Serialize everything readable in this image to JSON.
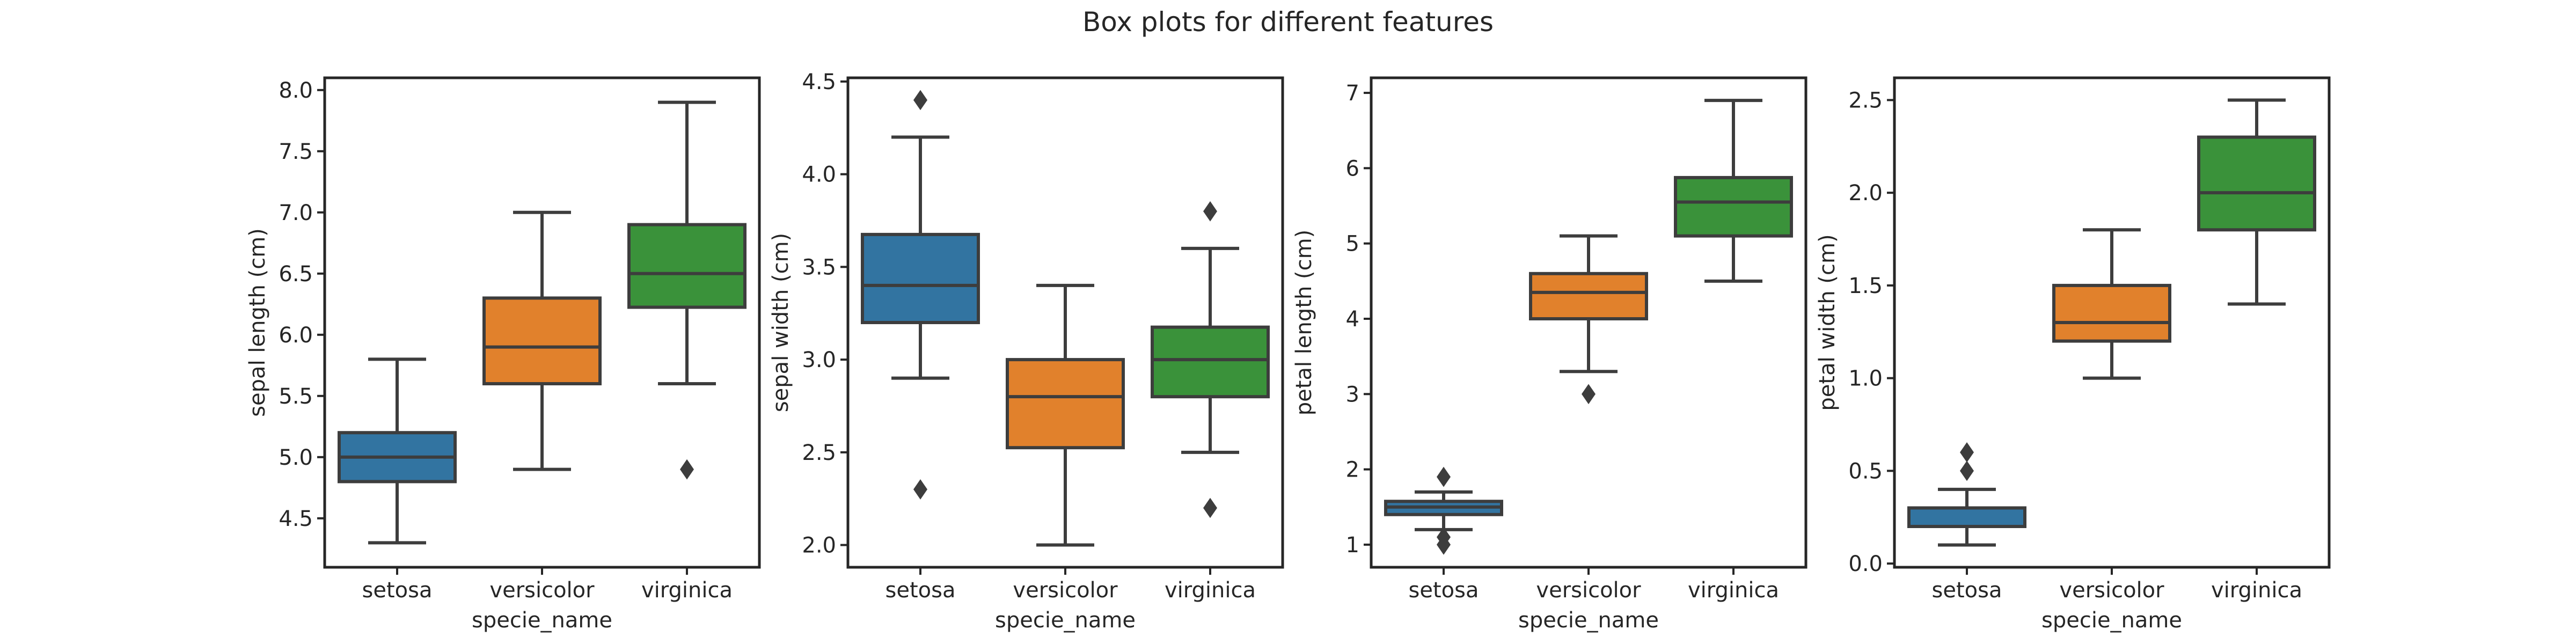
{
  "title": "Box plots for different features",
  "colors": {
    "setosa": "#3274a1",
    "versicolor": "#e1812c",
    "virginica": "#3a923a",
    "lines": "#3d3d3d"
  },
  "chart_data": [
    {
      "type": "box",
      "xlabel": "specie_name",
      "ylabel": "sepal length (cm)",
      "ylim": [
        4.1,
        8.1
      ],
      "yticks": [
        "4.5",
        "5.0",
        "5.5",
        "6.0",
        "6.5",
        "7.0",
        "7.5",
        "8.0"
      ],
      "categories": [
        "setosa",
        "versicolor",
        "virginica"
      ],
      "boxes": [
        {
          "whislo": 4.3,
          "q1": 4.8,
          "med": 5.0,
          "q3": 5.2,
          "whishi": 5.8,
          "fliers": []
        },
        {
          "whislo": 4.9,
          "q1": 5.6,
          "med": 5.9,
          "q3": 6.3,
          "whishi": 7.0,
          "fliers": []
        },
        {
          "whislo": 5.6,
          "q1": 6.225,
          "med": 6.5,
          "q3": 6.9,
          "whishi": 7.9,
          "fliers": [
            4.9
          ]
        }
      ]
    },
    {
      "type": "box",
      "xlabel": "specie_name",
      "ylabel": "sepal width (cm)",
      "ylim": [
        1.88,
        4.52
      ],
      "yticks": [
        "2.0",
        "2.5",
        "3.0",
        "3.5",
        "4.0",
        "4.5"
      ],
      "categories": [
        "setosa",
        "versicolor",
        "virginica"
      ],
      "boxes": [
        {
          "whislo": 2.9,
          "q1": 3.2,
          "med": 3.4,
          "q3": 3.675,
          "whishi": 4.2,
          "fliers": [
            4.4,
            2.3
          ]
        },
        {
          "whislo": 2.0,
          "q1": 2.525,
          "med": 2.8,
          "q3": 3.0,
          "whishi": 3.4,
          "fliers": []
        },
        {
          "whislo": 2.5,
          "q1": 2.8,
          "med": 3.0,
          "q3": 3.175,
          "whishi": 3.6,
          "fliers": [
            3.8,
            2.2
          ]
        }
      ]
    },
    {
      "type": "box",
      "xlabel": "specie_name",
      "ylabel": "petal length (cm)",
      "ylim": [
        0.7,
        7.2
      ],
      "yticks": [
        "1",
        "2",
        "3",
        "4",
        "5",
        "6",
        "7"
      ],
      "categories": [
        "setosa",
        "versicolor",
        "virginica"
      ],
      "boxes": [
        {
          "whislo": 1.2,
          "q1": 1.4,
          "med": 1.5,
          "q3": 1.575,
          "whishi": 1.7,
          "fliers": [
            1.9,
            1.1,
            1.0
          ]
        },
        {
          "whislo": 3.3,
          "q1": 4.0,
          "med": 4.35,
          "q3": 4.6,
          "whishi": 5.1,
          "fliers": [
            3.0
          ]
        },
        {
          "whislo": 4.5,
          "q1": 5.1,
          "med": 5.55,
          "q3": 5.875,
          "whishi": 6.9,
          "fliers": []
        }
      ]
    },
    {
      "type": "box",
      "xlabel": "specie_name",
      "ylabel": "petal width (cm)",
      "ylim": [
        -0.02,
        2.62
      ],
      "yticks": [
        "0.0",
        "0.5",
        "1.0",
        "1.5",
        "2.0",
        "2.5"
      ],
      "categories": [
        "setosa",
        "versicolor",
        "virginica"
      ],
      "boxes": [
        {
          "whislo": 0.1,
          "q1": 0.2,
          "med": 0.2,
          "q3": 0.3,
          "whishi": 0.4,
          "fliers": [
            0.6,
            0.5
          ]
        },
        {
          "whislo": 1.0,
          "q1": 1.2,
          "med": 1.3,
          "q3": 1.5,
          "whishi": 1.8,
          "fliers": []
        },
        {
          "whislo": 1.4,
          "q1": 1.8,
          "med": 2.0,
          "q3": 2.3,
          "whishi": 2.5,
          "fliers": []
        }
      ]
    }
  ]
}
